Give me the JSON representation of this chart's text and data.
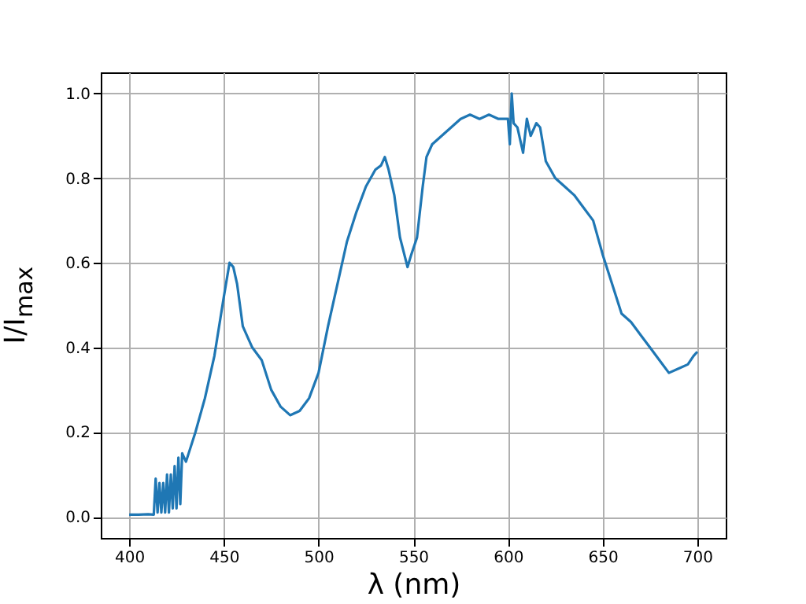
{
  "chart_data": {
    "type": "line",
    "xlabel": "λ (nm)",
    "ylabel": "I/I$_{max}$",
    "x": [
      400,
      405,
      410,
      413,
      414,
      415,
      416,
      417,
      418,
      419,
      420,
      421,
      422,
      423,
      424,
      425,
      426,
      427,
      428,
      430,
      435,
      440,
      445,
      450,
      453,
      455,
      457,
      460,
      463,
      465,
      470,
      475,
      480,
      485,
      490,
      495,
      500,
      505,
      510,
      515,
      520,
      525,
      530,
      533,
      535,
      537,
      540,
      543,
      547,
      549,
      552,
      555,
      557,
      560,
      565,
      570,
      575,
      580,
      585,
      590,
      595,
      600,
      601,
      602,
      603,
      605,
      608,
      610,
      612,
      615,
      617,
      620,
      625,
      630,
      635,
      640,
      645,
      650,
      655,
      660,
      665,
      670,
      675,
      680,
      685,
      690,
      695,
      698,
      700
    ],
    "series": [
      {
        "color": "#1f77b4",
        "values": [
          0.005,
          0.005,
          0.006,
          0.005,
          0.09,
          0.01,
          0.08,
          0.01,
          0.08,
          0.01,
          0.1,
          0.01,
          0.1,
          0.02,
          0.12,
          0.02,
          0.14,
          0.03,
          0.15,
          0.13,
          0.2,
          0.28,
          0.38,
          0.52,
          0.6,
          0.59,
          0.55,
          0.45,
          0.42,
          0.4,
          0.37,
          0.3,
          0.26,
          0.24,
          0.25,
          0.28,
          0.34,
          0.45,
          0.55,
          0.65,
          0.72,
          0.78,
          0.82,
          0.83,
          0.85,
          0.82,
          0.76,
          0.66,
          0.59,
          0.62,
          0.66,
          0.78,
          0.85,
          0.88,
          0.9,
          0.92,
          0.94,
          0.95,
          0.94,
          0.95,
          0.94,
          0.94,
          0.88,
          1.0,
          0.93,
          0.92,
          0.86,
          0.94,
          0.9,
          0.93,
          0.92,
          0.84,
          0.8,
          0.78,
          0.76,
          0.73,
          0.7,
          0.62,
          0.55,
          0.48,
          0.46,
          0.43,
          0.4,
          0.37,
          0.34,
          0.35,
          0.36,
          0.38,
          0.39
        ]
      }
    ],
    "xlim": [
      385,
      715
    ],
    "ylim": [
      -0.05,
      1.05
    ],
    "xticks": [
      400,
      450,
      500,
      550,
      600,
      650,
      700
    ],
    "yticks": [
      {
        "value": 0,
        "label": "0.0"
      },
      {
        "value": 0.2,
        "label": "0.2"
      },
      {
        "value": 0.4,
        "label": "0.4"
      },
      {
        "value": 0.6,
        "label": "0.6"
      },
      {
        "value": 0.8,
        "label": "0.8"
      },
      {
        "value": 1.0,
        "label": "1.0"
      }
    ],
    "grid": true
  }
}
